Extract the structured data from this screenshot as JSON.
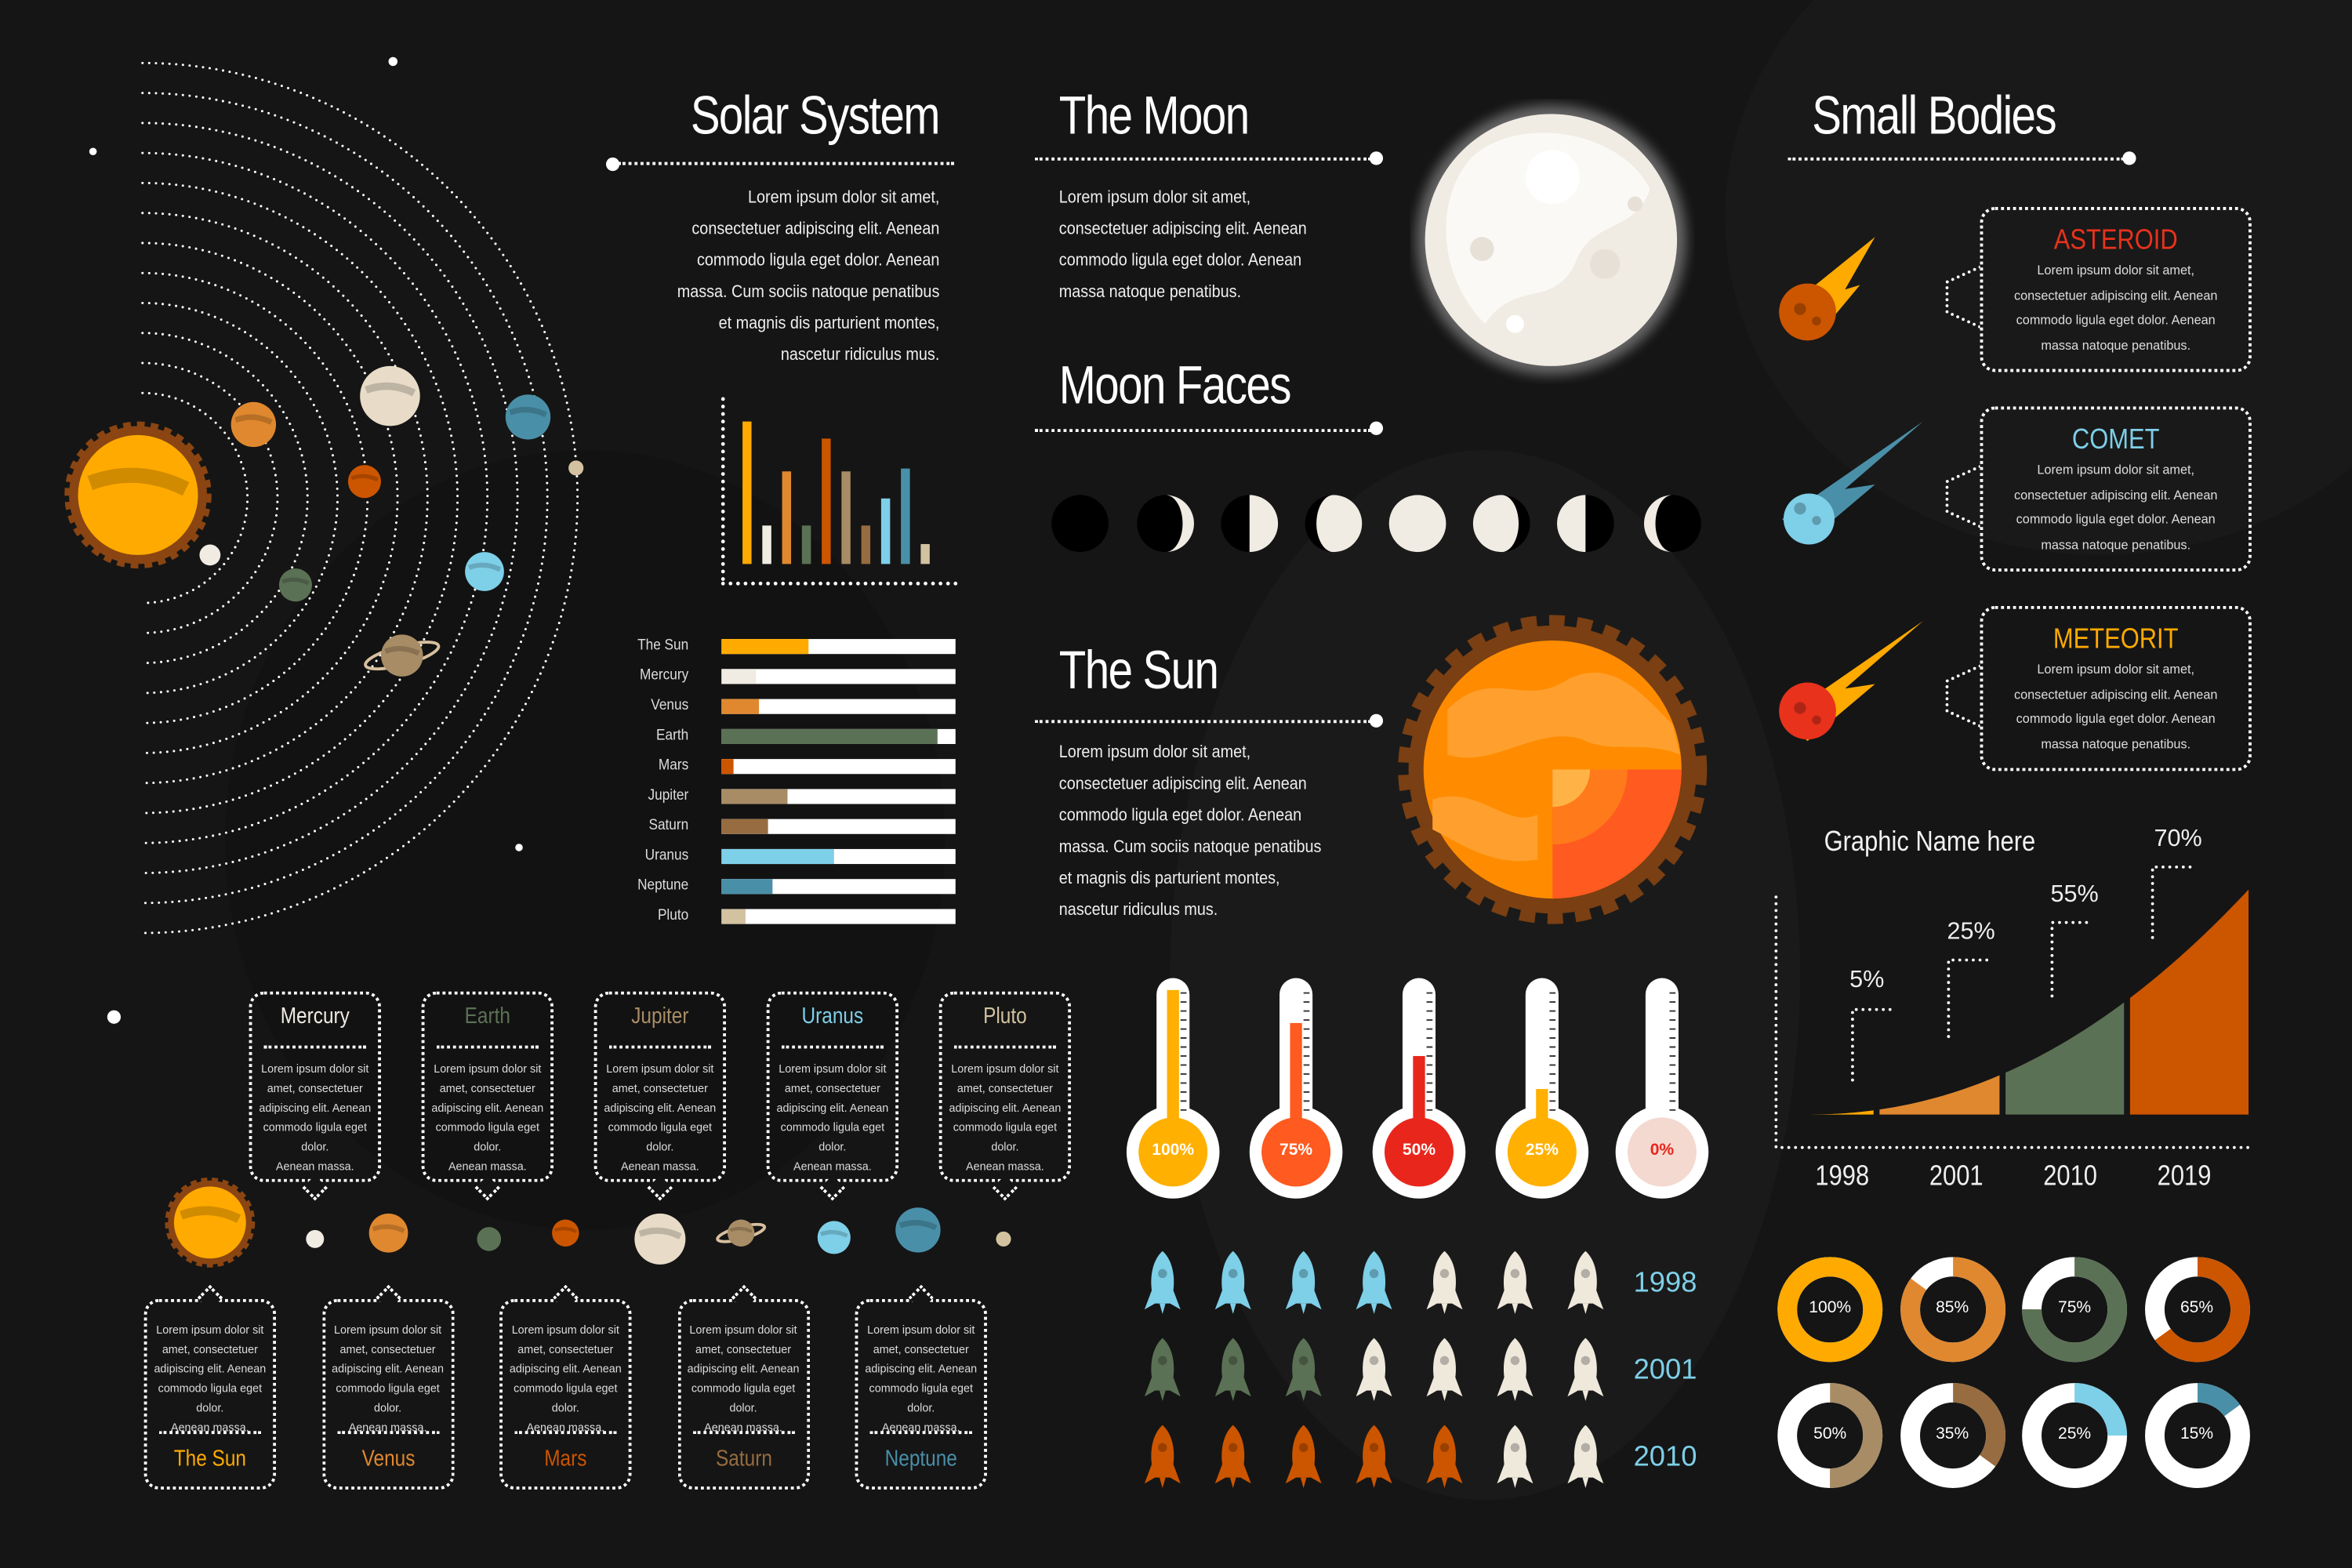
{
  "solar_system": {
    "title": "Solar System",
    "text": [
      "Lorem ipsum dolor sit amet,",
      "consectetuer adipiscing elit. Aenean",
      "commodo ligula eget dolor. Aenean",
      "massa. Cum sociis natoque penatibus",
      "et magnis dis parturient montes,",
      "nascetur ridiculus mus."
    ]
  },
  "moon": {
    "title": "The Moon",
    "text": [
      "Lorem ipsum dolor sit amet,",
      "consectetuer adipiscing elit. Aenean",
      "commodo ligula eget dolor. Aenean",
      "massa natoque penatibus."
    ]
  },
  "moon_faces": {
    "title": "Moon Faces",
    "phases": [
      "new",
      "waxing-crescent",
      "first-quarter",
      "waxing-gibbous",
      "full",
      "waning-gibbous",
      "last-quarter",
      "waning-crescent"
    ]
  },
  "sun": {
    "title": "The Sun",
    "text": [
      "Lorem ipsum dolor sit amet,",
      "consectetuer adipiscing elit. Aenean",
      "commodo ligula eget dolor. Aenean",
      "massa. Cum sociis natoque penatibus",
      "et magnis dis parturient montes,",
      "nascetur ridiculus mus."
    ]
  },
  "small_bodies": {
    "title": "Small Bodies",
    "items": [
      {
        "name": "ASTEROID",
        "color": "#e8321c",
        "icon": "asteroid-icon",
        "text": [
          "Lorem ipsum dolor sit amet,",
          "consectetuer adipiscing elit. Aenean",
          "commodo ligula eget dolor. Aenean",
          "massa natoque penatibus."
        ]
      },
      {
        "name": "COMET",
        "color": "#7ecfe8",
        "icon": "comet-icon",
        "text": [
          "Lorem ipsum dolor sit amet,",
          "consectetuer adipiscing elit. Aenean",
          "commodo ligula eget dolor. Aenean",
          "massa natoque penatibus."
        ]
      },
      {
        "name": "METEORIT",
        "color": "#ffaa00",
        "icon": "meteorite-icon",
        "text": [
          "Lorem ipsum dolor sit amet,",
          "consectetuer adipiscing elit. Aenean",
          "commodo ligula eget dolor. Aenean",
          "massa natoque penatibus."
        ]
      }
    ]
  },
  "colors": {
    "sun": "#ffaa00",
    "mercury": "#f0ebe3",
    "venus": "#e0882f",
    "earth": "#5b7155",
    "mars": "#cc5500",
    "jupiter": "#a88c65",
    "saturn": "#966c40",
    "uranus": "#7ecfe8",
    "neptune": "#4a8fa8",
    "pluto": "#d2c2a0"
  },
  "planet_cards_top": [
    {
      "name": "Mercury",
      "color": "#f0ebe3",
      "text": [
        "Lorem ipsum dolor sit",
        "amet, consectetuer",
        "adipiscing elit. Aenean",
        "commodo ligula eget dolor.",
        "Aenean massa."
      ]
    },
    {
      "name": "Earth",
      "color": "#5b7155",
      "text": [
        "Lorem ipsum dolor sit",
        "amet, consectetuer",
        "adipiscing elit. Aenean",
        "commodo ligula eget dolor.",
        "Aenean massa."
      ]
    },
    {
      "name": "Jupiter",
      "color": "#a88c65",
      "text": [
        "Lorem ipsum dolor sit",
        "amet, consectetuer",
        "adipiscing elit. Aenean",
        "commodo ligula eget dolor.",
        "Aenean massa."
      ]
    },
    {
      "name": "Uranus",
      "color": "#7ecfe8",
      "text": [
        "Lorem ipsum dolor sit",
        "amet, consectetuer",
        "adipiscing elit. Aenean",
        "commodo ligula eget dolor.",
        "Aenean massa."
      ]
    },
    {
      "name": "Pluto",
      "color": "#d2c2a0",
      "text": [
        "Lorem ipsum dolor sit",
        "amet, consectetuer",
        "adipiscing elit. Aenean",
        "commodo ligula eget dolor.",
        "Aenean massa."
      ]
    }
  ],
  "planet_cards_bottom": [
    {
      "name": "The Sun",
      "color": "#ffaa00",
      "text": [
        "Lorem ipsum dolor sit",
        "amet, consectetuer",
        "adipiscing elit. Aenean",
        "commodo ligula eget dolor.",
        "Aenean massa."
      ]
    },
    {
      "name": "Venus",
      "color": "#e0882f",
      "text": [
        "Lorem ipsum dolor sit",
        "amet, consectetuer",
        "adipiscing elit. Aenean",
        "commodo ligula eget dolor.",
        "Aenean massa."
      ]
    },
    {
      "name": "Mars",
      "color": "#cc5500",
      "text": [
        "Lorem ipsum dolor sit",
        "amet, consectetuer",
        "adipiscing elit. Aenean",
        "commodo ligula eget dolor.",
        "Aenean massa."
      ]
    },
    {
      "name": "Saturn",
      "color": "#966c40",
      "text": [
        "Lorem ipsum dolor sit",
        "amet, consectetuer",
        "adipiscing elit. Aenean",
        "commodo ligula eget dolor.",
        "Aenean massa."
      ]
    },
    {
      "name": "Neptune",
      "color": "#4a8fa8",
      "text": [
        "Lorem ipsum dolor sit",
        "amet, consectetuer",
        "adipiscing elit. Aenean",
        "commodo ligula eget dolor.",
        "Aenean massa."
      ]
    }
  ],
  "chart_data": [
    {
      "type": "bar",
      "categories": [
        "The Sun",
        "Mercury",
        "Venus",
        "Earth",
        "Mars",
        "Jupiter",
        "Saturn",
        "Uranus",
        "Neptune",
        "Pluto"
      ],
      "values": [
        100,
        27,
        65,
        27,
        88,
        65,
        27,
        46,
        67,
        14
      ],
      "colors": [
        "#ffaa00",
        "#f0ebe3",
        "#e0882f",
        "#5b7155",
        "#cc5500",
        "#a88c65",
        "#966c40",
        "#7ecfe8",
        "#4a8fa8",
        "#d2c2a0"
      ],
      "ylim": [
        0,
        100
      ],
      "grid": false
    },
    {
      "type": "bar",
      "orientation": "horizontal",
      "categories": [
        "The Sun",
        "Mercury",
        "Venus",
        "Earth",
        "Mars",
        "Jupiter",
        "Saturn",
        "Uranus",
        "Neptune",
        "Pluto"
      ],
      "values": [
        37,
        15,
        16,
        92,
        5,
        28,
        20,
        48,
        22,
        10
      ],
      "xlim": [
        0,
        100
      ]
    },
    {
      "type": "area",
      "title": "Graphic Name here",
      "categories": [
        "1998",
        "2001",
        "2010",
        "2019"
      ],
      "labels": [
        "5%",
        "25%",
        "55%",
        "70%"
      ],
      "values": [
        5,
        25,
        55,
        70
      ],
      "colors": [
        "#ffaa00",
        "#e0882f",
        "#5b7155",
        "#cc5500"
      ]
    },
    {
      "type": "pie",
      "variant": "donut",
      "labels": [
        "100%",
        "85%",
        "75%",
        "65%",
        "50%",
        "35%",
        "25%",
        "15%"
      ],
      "values": [
        100,
        85,
        75,
        65,
        50,
        35,
        25,
        15
      ],
      "colors": [
        "#ffaa00",
        "#e0882f",
        "#5b7155",
        "#cc5500",
        "#a88c65",
        "#966c40",
        "#7ecfe8",
        "#4a8fa8"
      ]
    },
    {
      "type": "bar",
      "variant": "thermometer",
      "labels": [
        "100%",
        "75%",
        "50%",
        "25%",
        "0%"
      ],
      "values": [
        100,
        75,
        50,
        25,
        0
      ],
      "colors": [
        "#ffb000",
        "#ff5a1f",
        "#e8261c",
        "#ffb000",
        "#f4d9d0"
      ]
    },
    {
      "type": "table",
      "variant": "pictogram",
      "icon": "rocket-icon",
      "rows": [
        {
          "year": "1998",
          "filled": 4,
          "total": 7,
          "color": "#7ecfe8"
        },
        {
          "year": "2001",
          "filled": 3,
          "total": 7,
          "color": "#5b7155"
        },
        {
          "year": "2010",
          "filled": 5,
          "total": 7,
          "color": "#cc5500"
        }
      ]
    }
  ]
}
